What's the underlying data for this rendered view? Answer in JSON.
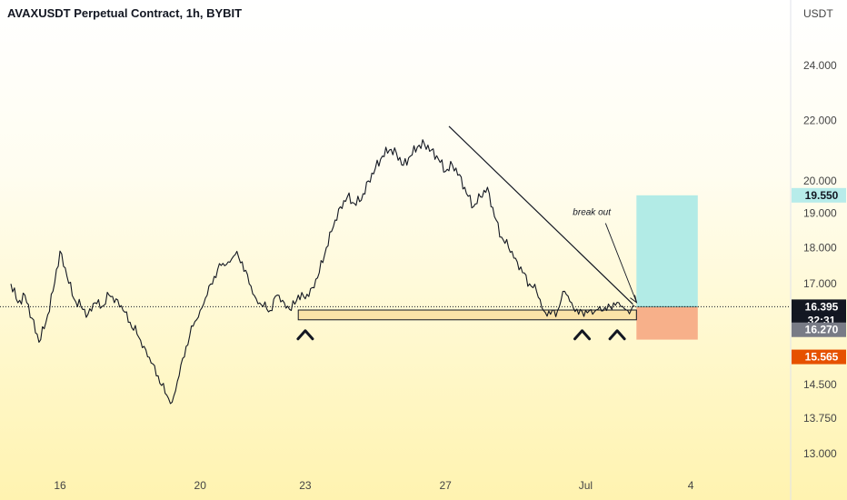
{
  "header": {
    "title": "AVAXUSDT Perpetual Contract, 1h, BYBIT"
  },
  "y_axis": {
    "unit": "USDT"
  },
  "chart_data": {
    "type": "line",
    "title": "AVAXUSDT Perpetual Contract, 1h, BYBIT",
    "xlabel": "",
    "ylabel": "USDT",
    "y_scale": "log",
    "ylim": [
      12.5,
      26.5
    ],
    "x_ticks": [
      {
        "label": "16",
        "day": 16
      },
      {
        "label": "20",
        "day": 20
      },
      {
        "label": "23",
        "day": 23
      },
      {
        "label": "27",
        "day": 27
      },
      {
        "label": "Jul",
        "day": 31
      },
      {
        "label": "4",
        "day": 34
      }
    ],
    "y_ticks": [
      "24.000",
      "22.000",
      "20.000",
      "19.000",
      "18.000",
      "17.000",
      "14.500",
      "13.750",
      "13.000"
    ],
    "price_tags": [
      {
        "label": "19.550",
        "value": 19.55,
        "bg": "#b7ecea",
        "fg": "#131722"
      },
      {
        "label": "16.395",
        "value": 16.395,
        "bg": "#131722",
        "fg": "#ffffff"
      },
      {
        "label": "32:31",
        "bg": "#131722",
        "fg": "#ffffff"
      },
      {
        "label": "16.270",
        "value": 16.27,
        "bg": "#787b86",
        "fg": "#ffffff"
      },
      {
        "label": "15.565",
        "value": 15.565,
        "bg": "#e65100",
        "fg": "#ffffff"
      }
    ],
    "current_price": 16.395,
    "series": [
      {
        "x": [
          14.6,
          14.8,
          15.0,
          15.2,
          15.4,
          15.6,
          15.8,
          16.0,
          16.2,
          16.4,
          16.6,
          16.8,
          17.0,
          17.2,
          17.4,
          17.6,
          17.8,
          18.0,
          18.2,
          18.4,
          18.6,
          18.8,
          19.0,
          19.2,
          19.4,
          19.6,
          19.8,
          20.0,
          20.2,
          20.4,
          20.6,
          20.8,
          21.0,
          21.2,
          21.4,
          21.6,
          21.8,
          22.0,
          22.2,
          22.4,
          22.6,
          22.8,
          23.0,
          23.2,
          23.4,
          23.6,
          23.8,
          24.0,
          24.2,
          24.4,
          24.6,
          24.8,
          25.0,
          25.2,
          25.4,
          25.6,
          25.8,
          26.0,
          26.2,
          26.4,
          26.6,
          26.8,
          27.0,
          27.2,
          27.4,
          27.6,
          27.8,
          28.0,
          28.2,
          28.4,
          28.6,
          28.8,
          29.0,
          29.2,
          29.4,
          29.6,
          29.8,
          30.0,
          30.2,
          30.4,
          30.6,
          30.8,
          31.0,
          31.2,
          31.4,
          31.6,
          31.8,
          32.0,
          32.2,
          32.4
        ],
        "values": [
          17.0,
          16.5,
          16.7,
          16.1,
          15.5,
          16.0,
          16.8,
          17.9,
          17.2,
          16.6,
          16.4,
          16.2,
          16.5,
          16.4,
          16.7,
          16.6,
          16.3,
          16.0,
          15.7,
          15.4,
          15.0,
          14.7,
          14.3,
          14.1,
          14.7,
          15.4,
          15.9,
          16.3,
          16.7,
          17.2,
          17.5,
          17.6,
          17.8,
          17.6,
          17.0,
          16.6,
          16.4,
          16.3,
          16.7,
          16.5,
          16.3,
          16.7,
          16.6,
          16.9,
          17.3,
          18.0,
          18.6,
          19.2,
          19.5,
          19.3,
          19.4,
          20.0,
          20.4,
          20.8,
          21.0,
          20.9,
          20.5,
          20.8,
          21.1,
          21.2,
          21.0,
          20.7,
          20.3,
          20.5,
          20.2,
          19.6,
          19.2,
          19.5,
          19.8,
          18.9,
          18.3,
          18.0,
          17.7,
          17.3,
          17.0,
          16.8,
          16.3,
          16.2,
          16.3,
          16.8,
          16.5,
          16.2,
          16.3,
          16.2,
          16.4,
          16.3,
          16.5,
          16.4,
          16.3,
          16.4
        ]
      }
    ],
    "annotations": [
      {
        "type": "text",
        "text": "break out"
      },
      {
        "type": "support-zone",
        "y_low": 16.06,
        "y_high": 16.31,
        "x_start": 22.8,
        "x_end": 32.45
      },
      {
        "type": "trendline",
        "points": [
          [
            27.1,
            21.8
          ],
          [
            32.35,
            16.46
          ]
        ]
      },
      {
        "type": "long-position",
        "entry": 16.395,
        "target": 19.55,
        "stop": 15.565,
        "x_start": 32.45,
        "x_end": 34.2
      },
      {
        "type": "pivot-marker",
        "x": 23.0
      },
      {
        "type": "pivot-marker",
        "x": 30.9
      },
      {
        "type": "pivot-marker",
        "x": 31.9
      }
    ]
  }
}
